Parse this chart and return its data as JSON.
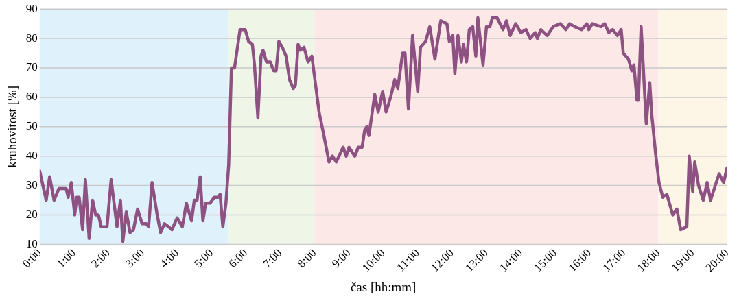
{
  "chart_data": {
    "type": "line",
    "xlabel": "čas [hh:mm]",
    "ylabel": "kruhovitost [%]",
    "x": [
      0,
      0.19,
      0.29,
      0.42,
      0.56,
      0.77,
      0.83,
      0.92,
      1.02,
      1.08,
      1.15,
      1.25,
      1.33,
      1.44,
      1.54,
      1.63,
      1.71,
      1.79,
      1.96,
      2.08,
      2.25,
      2.35,
      2.42,
      2.52,
      2.63,
      2.73,
      2.85,
      2.98,
      3.1,
      3.17,
      3.27,
      3.42,
      3.52,
      3.63,
      3.75,
      3.85,
      4,
      4.15,
      4.27,
      4.42,
      4.5,
      4.58,
      4.67,
      4.75,
      4.83,
      4.96,
      5.08,
      5.19,
      5.25,
      5.33,
      5.42,
      5.5,
      5.58,
      5.67,
      5.83,
      5.98,
      6.08,
      6.19,
      6.25,
      6.35,
      6.44,
      6.5,
      6.6,
      6.71,
      6.81,
      6.88,
      6.96,
      7.06,
      7.17,
      7.27,
      7.38,
      7.44,
      7.52,
      7.58,
      7.69,
      7.81,
      7.92,
      8.02,
      8.13,
      8.27,
      8.42,
      8.52,
      8.63,
      8.83,
      8.92,
      9,
      9.17,
      9.27,
      9.38,
      9.46,
      9.52,
      9.58,
      9.75,
      9.85,
      9.98,
      10.08,
      10.21,
      10.33,
      10.42,
      10.56,
      10.63,
      10.73,
      10.85,
      11,
      11.08,
      11.23,
      11.35,
      11.5,
      11.67,
      11.85,
      11.92,
      12.02,
      12.08,
      12.17,
      12.27,
      12.33,
      12.42,
      12.5,
      12.6,
      12.69,
      12.75,
      12.9,
      13,
      13.1,
      13.17,
      13.31,
      13.48,
      13.58,
      13.69,
      13.85,
      14,
      14.15,
      14.27,
      14.42,
      14.48,
      14.58,
      14.77,
      14.94,
      15.15,
      15.31,
      15.42,
      15.56,
      15.77,
      15.92,
      15.98,
      16.08,
      16.33,
      16.44,
      16.56,
      16.67,
      16.81,
      16.92,
      16.98,
      17.13,
      17.23,
      17.29,
      17.38,
      17.42,
      17.5,
      17.65,
      17.75,
      17.81,
      17.92,
      18.02,
      18.13,
      18.25,
      18.42,
      18.54,
      18.65,
      18.83,
      18.9,
      19,
      19.06,
      19.17,
      19.31,
      19.42,
      19.52,
      19.63,
      19.77,
      19.9,
      20
    ],
    "series": [
      {
        "color": "#8e5282",
        "values": [
          35,
          25,
          33,
          25,
          29,
          29,
          26,
          31,
          20,
          26,
          26,
          15,
          32,
          12,
          25,
          20,
          20,
          16,
          16,
          32,
          16,
          25,
          11,
          21,
          14,
          15,
          22,
          17,
          17,
          16,
          31,
          20,
          14,
          17,
          16,
          15,
          19,
          16,
          24,
          18,
          25,
          25,
          33,
          18,
          24,
          24,
          26,
          26,
          27,
          16,
          24,
          37,
          70,
          70,
          83,
          83,
          79,
          78,
          71,
          53,
          74,
          76,
          72,
          72,
          69,
          69,
          79,
          77,
          74,
          66,
          63,
          64,
          78,
          76,
          77,
          72,
          74,
          65,
          55,
          47,
          38,
          40,
          38,
          43,
          40,
          43,
          40,
          43,
          43,
          49,
          50,
          47,
          61,
          55,
          62,
          55,
          60,
          66,
          63,
          75,
          75,
          56,
          81,
          62,
          77,
          79,
          84,
          73,
          86,
          85,
          79,
          81,
          68,
          81,
          72,
          78,
          72,
          83,
          84,
          74,
          87,
          71,
          84,
          84,
          87,
          87,
          83,
          86,
          81,
          85,
          82,
          83,
          80,
          82,
          80,
          83,
          81,
          84,
          85,
          83,
          85,
          84,
          83,
          85,
          83,
          85,
          84,
          85,
          82,
          83,
          81,
          83,
          75,
          73,
          69,
          71,
          59,
          59,
          84,
          51,
          65,
          54,
          41,
          31,
          26,
          27,
          20,
          22,
          15,
          16,
          40,
          28,
          38,
          30,
          25,
          31,
          25,
          29,
          34,
          31,
          36
        ]
      }
    ],
    "xlim": [
      0,
      20
    ],
    "xticks": [
      {
        "value": 0,
        "label": "0:00"
      },
      {
        "value": 1,
        "label": "1:00"
      },
      {
        "value": 2,
        "label": "2:00"
      },
      {
        "value": 3,
        "label": "3:00"
      },
      {
        "value": 4,
        "label": "4:00"
      },
      {
        "value": 5,
        "label": "5:00"
      },
      {
        "value": 6,
        "label": "6:00"
      },
      {
        "value": 7,
        "label": "7:00"
      },
      {
        "value": 8,
        "label": "8:00"
      },
      {
        "value": 9,
        "label": "9:00"
      },
      {
        "value": 10,
        "label": "10:00"
      },
      {
        "value": 11,
        "label": "11:00"
      },
      {
        "value": 12,
        "label": "12:00"
      },
      {
        "value": 13,
        "label": "13:00"
      },
      {
        "value": 14,
        "label": "14:00"
      },
      {
        "value": 15,
        "label": "15:00"
      },
      {
        "value": 16,
        "label": "16:00"
      },
      {
        "value": 17,
        "label": "17:00"
      },
      {
        "value": 18,
        "label": "18:00"
      },
      {
        "value": 19,
        "label": "19:00"
      },
      {
        "value": 20,
        "label": "20:00"
      }
    ],
    "ylim": [
      10,
      90
    ],
    "yticks": [
      10,
      20,
      30,
      40,
      50,
      60,
      70,
      80,
      90
    ],
    "grid": "y",
    "marker": "none",
    "line_style": "solid",
    "bands": [
      {
        "axis": "x",
        "from": 0,
        "to": 5.5,
        "color": "#dff1fa"
      },
      {
        "axis": "x",
        "from": 5.5,
        "to": 8,
        "color": "#eff6e8"
      },
      {
        "axis": "x",
        "from": 8,
        "to": 18,
        "color": "#fde8e8"
      },
      {
        "axis": "x",
        "from": 18,
        "to": 20,
        "color": "#fdf5e6"
      }
    ]
  }
}
